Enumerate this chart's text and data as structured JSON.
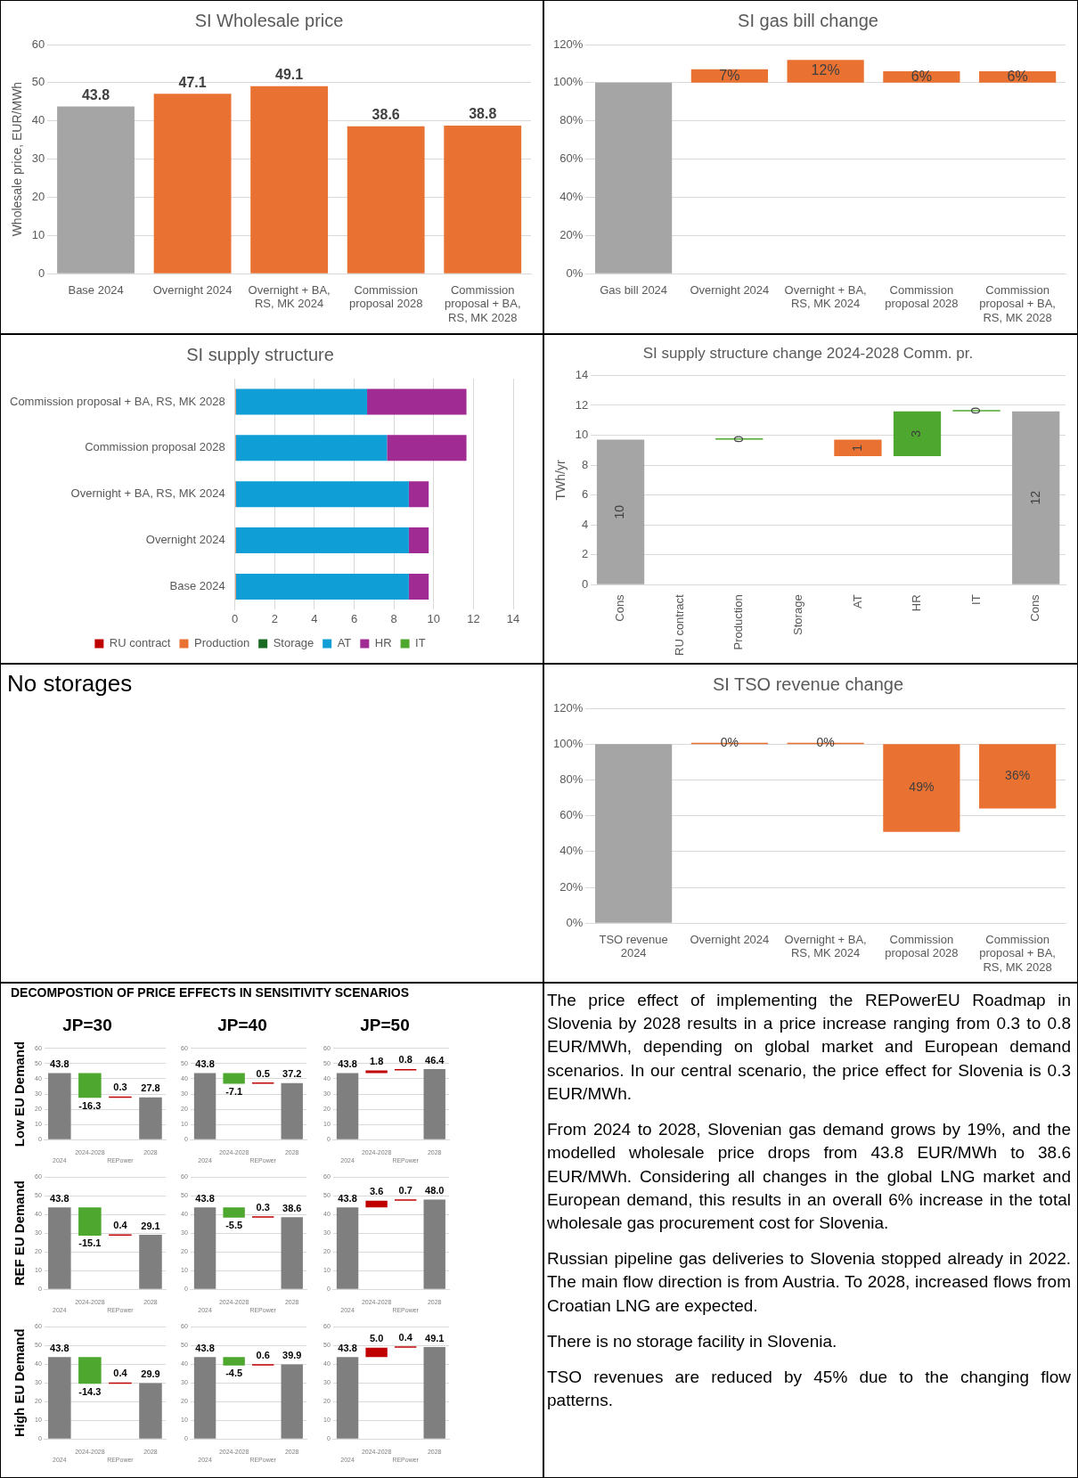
{
  "chart_data": [
    {
      "type": "bar",
      "title": "SI Wholesale price",
      "ylabel": "Wholesale price, EUR/MWh",
      "categories": [
        "Base 2024",
        "Overnight 2024",
        "Overnight + BA, RS, MK 2024",
        "Commission proposal 2028",
        "Commission proposal + BA, RS, MK 2028"
      ],
      "values": [
        43.8,
        47.1,
        49.1,
        38.6,
        38.8
      ],
      "colors": [
        "#a5a5a5",
        "#e97132",
        "#e97132",
        "#e97132",
        "#e97132"
      ],
      "data_labels": true,
      "ylim": [
        0,
        60
      ],
      "yticks": [
        0,
        10,
        20,
        30,
        40,
        50,
        60
      ],
      "grid": "y"
    },
    {
      "type": "bar",
      "title": "SI gas bill change",
      "categories": [
        "Gas bill 2024",
        "Overnight 2024",
        "Overnight + BA, RS, MK 2024",
        "Commission proposal 2028",
        "Commission proposal + BA, RS, MK 2028"
      ],
      "values": [
        100,
        7,
        12,
        6,
        6
      ],
      "base": [
        0,
        100,
        100,
        100,
        100
      ],
      "colors": [
        "#a5a5a5",
        "#e97132",
        "#e97132",
        "#e97132",
        "#e97132"
      ],
      "value_labels": [
        null,
        "7%",
        "12%",
        "6%",
        "6%"
      ],
      "ylim": [
        0,
        120
      ],
      "yticks": [
        {
          "value": 0,
          "label": "0%"
        },
        {
          "value": 20,
          "label": "20%"
        },
        {
          "value": 40,
          "label": "40%"
        },
        {
          "value": 60,
          "label": "60%"
        },
        {
          "value": 80,
          "label": "80%"
        },
        {
          "value": 100,
          "label": "100%"
        },
        {
          "value": 120,
          "label": "120%"
        }
      ],
      "grid": "y"
    },
    {
      "type": "bar",
      "title": "SI supply structure",
      "orientation": "horizontal",
      "stacked": true,
      "categories": [
        "Commission proposal + BA, RS, MK 2028",
        "Commission proposal 2028",
        "Overnight + BA, RS, MK 2024",
        "Overnight 2024",
        "Base 2024"
      ],
      "series": [
        {
          "name": "RU contract",
          "color": "#c00000",
          "values": [
            0,
            0,
            0,
            0,
            0
          ]
        },
        {
          "name": "Production",
          "color": "#e97132",
          "values": [
            0.05,
            0.05,
            0.05,
            0.05,
            0.05
          ]
        },
        {
          "name": "Storage",
          "color": "#196b24",
          "values": [
            0,
            0,
            0,
            0,
            0
          ]
        },
        {
          "name": "AT",
          "color": "#0f9ed5",
          "values": [
            6.6,
            7.6,
            8.7,
            8.7,
            8.7
          ]
        },
        {
          "name": "HR",
          "color": "#a02b93",
          "values": [
            5.0,
            4.0,
            1.0,
            1.0,
            1.0
          ]
        },
        {
          "name": "IT",
          "color": "#4ea72e",
          "values": [
            0,
            0,
            0,
            0,
            0
          ]
        }
      ],
      "xlim": [
        0,
        14
      ],
      "xticks": [
        0,
        2,
        4,
        6,
        8,
        10,
        12,
        14
      ],
      "grid": "x",
      "legend": "bottom"
    },
    {
      "type": "bar",
      "title": "SI supply structure change 2024-2028 Comm. pr.",
      "ylabel": "TWh/yr",
      "categories": [
        "Cons",
        "RU contract",
        "Production",
        "Storage",
        "AT",
        "HR",
        "IT",
        "Cons"
      ],
      "values": [
        9.7,
        null,
        0,
        null,
        -1.1,
        3.0,
        0,
        11.6
      ],
      "base": [
        0,
        null,
        9.7,
        null,
        9.7,
        8.6,
        11.6,
        0
      ],
      "colors": [
        "#a5a5a5",
        "#4ea72e",
        "#4ea72e",
        "#4ea72e",
        "#e97132",
        "#4ea72e",
        "#4ea72e",
        "#a5a5a5"
      ],
      "value_labels": [
        "10",
        null,
        "0",
        null,
        "1",
        "3",
        "0",
        "12"
      ],
      "ylim": [
        0,
        14
      ],
      "yticks": [
        0,
        2,
        4,
        6,
        8,
        10,
        12,
        14
      ],
      "grid": "y"
    },
    {
      "type": "other",
      "title": "No storages"
    },
    {
      "type": "bar",
      "title": "SI TSO revenue change",
      "categories": [
        "TSO revenue 2024",
        "Overnight 2024",
        "Overnight + BA, RS, MK 2024",
        "Commission proposal 2028",
        "Commission proposal + BA, RS, MK 2028"
      ],
      "values": [
        100,
        0,
        0,
        -49,
        -36
      ],
      "base": [
        0,
        100,
        100,
        100,
        100
      ],
      "colors": [
        "#a5a5a5",
        "#e97132",
        "#e97132",
        "#e97132",
        "#e97132"
      ],
      "value_labels": [
        null,
        "0%",
        "0%",
        "49%",
        "36%"
      ],
      "ylim": [
        0,
        120
      ],
      "yticks": [
        {
          "value": 0,
          "label": "0%"
        },
        {
          "value": 20,
          "label": "20%"
        },
        {
          "value": 40,
          "label": "40%"
        },
        {
          "value": 60,
          "label": "60%"
        },
        {
          "value": 80,
          "label": "80%"
        },
        {
          "value": 100,
          "label": "100%"
        },
        {
          "value": 120,
          "label": "120%"
        }
      ],
      "grid": "y"
    },
    {
      "type": "other",
      "title": "DECOMPOSTION OF PRICE EFFECTS IN SENSITIVITY SCENARIOS"
    },
    {
      "type": "bar",
      "title": "JP=30",
      "ylabel": "Low EU Demand",
      "categories": [
        "2024",
        "2024-2028",
        "REPower",
        "2028"
      ],
      "values": [
        43.8,
        -16.3,
        0.3,
        27.8
      ],
      "base": [
        0,
        43.8,
        27.5,
        0
      ],
      "colors": [
        "#7f7f7f",
        "#4ea72e",
        "#c00000",
        "#7f7f7f"
      ],
      "value_labels": [
        "43.8",
        "-16.3",
        "0.3",
        "27.8"
      ],
      "ylim": [
        0,
        60
      ],
      "yticks": [
        0,
        10,
        20,
        30,
        40,
        50,
        60
      ],
      "grid": "y"
    },
    {
      "type": "bar",
      "title": "JP=40",
      "categories": [
        "2024",
        "2024-2028",
        "REPower",
        "2028"
      ],
      "values": [
        43.8,
        -7.1,
        0.5,
        37.2
      ],
      "base": [
        0,
        43.8,
        36.7,
        0
      ],
      "colors": [
        "#7f7f7f",
        "#4ea72e",
        "#c00000",
        "#7f7f7f"
      ],
      "value_labels": [
        "43.8",
        "-7.1",
        "0.5",
        "37.2"
      ],
      "ylim": [
        0,
        60
      ],
      "yticks": [
        0,
        10,
        20,
        30,
        40,
        50,
        60
      ],
      "grid": "y"
    },
    {
      "type": "bar",
      "title": "JP=50",
      "categories": [
        "2024",
        "2024-2028",
        "REPower",
        "2028"
      ],
      "values": [
        43.8,
        1.8,
        0.8,
        46.4
      ],
      "base": [
        0,
        43.8,
        45.6,
        0
      ],
      "colors": [
        "#7f7f7f",
        "#c00000",
        "#c00000",
        "#7f7f7f"
      ],
      "value_labels": [
        "43.8",
        "1.8",
        "0.8",
        "46.4"
      ],
      "ylim": [
        0,
        60
      ],
      "yticks": [
        0,
        10,
        20,
        30,
        40,
        50,
        60
      ],
      "grid": "y"
    },
    {
      "type": "bar",
      "ylabel": "REF EU Demand",
      "categories": [
        "2024",
        "2024-2028",
        "REPower",
        "2028"
      ],
      "values": [
        43.8,
        -15.1,
        0.4,
        29.1
      ],
      "base": [
        0,
        43.8,
        28.7,
        0
      ],
      "colors": [
        "#7f7f7f",
        "#4ea72e",
        "#c00000",
        "#7f7f7f"
      ],
      "value_labels": [
        "43.8",
        "-15.1",
        "0.4",
        "29.1"
      ],
      "ylim": [
        0,
        60
      ],
      "yticks": [
        0,
        10,
        20,
        30,
        40,
        50,
        60
      ],
      "grid": "y"
    },
    {
      "type": "bar",
      "categories": [
        "2024",
        "2024-2028",
        "REPower",
        "2028"
      ],
      "values": [
        43.8,
        -5.5,
        0.3,
        38.6
      ],
      "base": [
        0,
        43.8,
        38.3,
        0
      ],
      "colors": [
        "#7f7f7f",
        "#4ea72e",
        "#c00000",
        "#7f7f7f"
      ],
      "value_labels": [
        "43.8",
        "-5.5",
        "0.3",
        "38.6"
      ],
      "ylim": [
        0,
        60
      ],
      "yticks": [
        0,
        10,
        20,
        30,
        40,
        50,
        60
      ],
      "grid": "y"
    },
    {
      "type": "bar",
      "categories": [
        "2024",
        "2024-2028",
        "REPower",
        "2028"
      ],
      "values": [
        43.8,
        3.6,
        0.7,
        48.0
      ],
      "base": [
        0,
        43.8,
        47.4,
        0
      ],
      "colors": [
        "#7f7f7f",
        "#c00000",
        "#c00000",
        "#7f7f7f"
      ],
      "value_labels": [
        "43.8",
        "3.6",
        "0.7",
        "48.0"
      ],
      "ylim": [
        0,
        60
      ],
      "yticks": [
        0,
        10,
        20,
        30,
        40,
        50,
        60
      ],
      "grid": "y"
    },
    {
      "type": "bar",
      "ylabel": "High EU Demand",
      "categories": [
        "2024",
        "2024-2028",
        "REPower",
        "2028"
      ],
      "values": [
        43.8,
        -14.3,
        0.4,
        29.9
      ],
      "base": [
        0,
        43.8,
        29.5,
        0
      ],
      "colors": [
        "#7f7f7f",
        "#4ea72e",
        "#c00000",
        "#7f7f7f"
      ],
      "value_labels": [
        "43.8",
        "-14.3",
        "0.4",
        "29.9"
      ],
      "ylim": [
        0,
        60
      ],
      "yticks": [
        0,
        10,
        20,
        30,
        40,
        50,
        60
      ],
      "grid": "y"
    },
    {
      "type": "bar",
      "categories": [
        "2024",
        "2024-2028",
        "REPower",
        "2028"
      ],
      "values": [
        43.8,
        -4.5,
        0.6,
        39.9
      ],
      "base": [
        0,
        43.8,
        39.3,
        0
      ],
      "colors": [
        "#7f7f7f",
        "#4ea72e",
        "#c00000",
        "#7f7f7f"
      ],
      "value_labels": [
        "43.8",
        "-4.5",
        "0.6",
        "39.9"
      ],
      "ylim": [
        0,
        60
      ],
      "yticks": [
        0,
        10,
        20,
        30,
        40,
        50,
        60
      ],
      "grid": "y"
    },
    {
      "type": "bar",
      "categories": [
        "2024",
        "2024-2028",
        "REPower",
        "2028"
      ],
      "values": [
        43.8,
        5.0,
        0.4,
        49.1
      ],
      "base": [
        0,
        43.8,
        48.8,
        0
      ],
      "colors": [
        "#7f7f7f",
        "#c00000",
        "#c00000",
        "#7f7f7f"
      ],
      "value_labels": [
        "43.8",
        "5.0",
        "0.4",
        "49.1"
      ],
      "ylim": [
        0,
        60
      ],
      "yticks": [
        0,
        10,
        20,
        30,
        40,
        50,
        60
      ],
      "grid": "y"
    },
    {
      "type": "other",
      "annotations": [
        "The price effect of implementing the REPowerEU Roadmap in Slovenia by 2028 results in a price increase ranging from 0.3 to 0.8 EUR/MWh, depending on global market and European demand scenarios. In our central scenario, the price effect for Slovenia is 0.3 EUR/MWh.",
        "From 2024 to 2028, Slovenian gas demand grows by 19%, and the modelled wholesale price drops from 43.8 EUR/MWh to 38.6 EUR/MWh. Considering all changes in the global LNG market and European demand, this results in an overall 6% increase in the total wholesale gas procurement cost for Slovenia.",
        "Russian pipeline gas deliveries to Slovenia stopped already in 2022. The main flow direction is from Austria. To 2028, increased flows from Croatian LNG are expected.",
        "There is no storage facility in Slovenia.",
        "TSO revenues are reduced by 45% due to the changing flow patterns."
      ]
    }
  ]
}
